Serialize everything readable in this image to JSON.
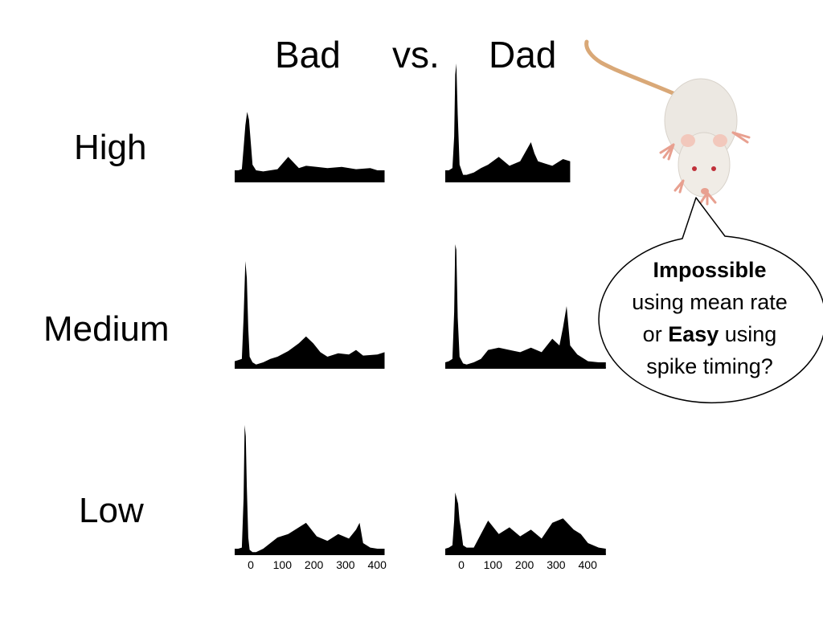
{
  "title": {
    "left_word": "Bad",
    "middle_word": "vs.",
    "right_word": "Dad"
  },
  "row_labels": [
    "High",
    "Medium",
    "Low"
  ],
  "callout": {
    "bold_1": "Impossible",
    "line_2": "using mean rate",
    "line_3_prefix": "or",
    "bold_2": "Easy",
    "line_3_suffix": "using",
    "line_4": "spike timing?"
  },
  "colors": {
    "hist_fill": "#000000",
    "callout_stroke": "#000000",
    "rat_body": "#ece8e2",
    "rat_tail": "#d9a877",
    "rat_pink": "#e8a090"
  },
  "picture": {
    "rat_icon": "white-lab-rat-icon"
  },
  "chart_data": [
    {
      "type": "area",
      "stimulus": "Bad",
      "level": "High",
      "x": [
        0,
        10,
        20,
        25,
        30,
        35,
        40,
        45,
        50,
        60,
        80,
        100,
        120,
        150,
        180,
        200,
        230,
        260,
        300,
        340,
        380,
        400,
        420
      ],
      "y": [
        0.1,
        0.1,
        0.11,
        0.3,
        0.5,
        0.62,
        0.55,
        0.35,
        0.15,
        0.1,
        0.09,
        0.1,
        0.11,
        0.22,
        0.12,
        0.14,
        0.13,
        0.12,
        0.13,
        0.11,
        0.12,
        0.1,
        0.1
      ],
      "xlim": [
        0,
        450
      ],
      "ylim": [
        0,
        1
      ]
    },
    {
      "type": "area",
      "stimulus": "Dad",
      "level": "High",
      "x": [
        0,
        10,
        20,
        25,
        28,
        31,
        35,
        40,
        50,
        60,
        80,
        100,
        120,
        150,
        180,
        210,
        240,
        250,
        260,
        280,
        300,
        330,
        350
      ],
      "y": [
        0.1,
        0.1,
        0.12,
        0.4,
        0.95,
        1.05,
        0.6,
        0.15,
        0.06,
        0.06,
        0.08,
        0.12,
        0.15,
        0.22,
        0.14,
        0.18,
        0.35,
        0.25,
        0.18,
        0.16,
        0.14,
        0.2,
        0.18
      ],
      "xlim": [
        0,
        450
      ],
      "ylim": [
        0,
        1
      ]
    },
    {
      "type": "area",
      "stimulus": "Bad",
      "level": "Medium",
      "x": [
        0,
        10,
        20,
        25,
        30,
        34,
        38,
        42,
        50,
        60,
        80,
        100,
        120,
        150,
        180,
        200,
        220,
        240,
        260,
        290,
        320,
        340,
        360,
        400,
        420
      ],
      "y": [
        0.06,
        0.07,
        0.08,
        0.45,
        0.95,
        0.8,
        0.35,
        0.1,
        0.05,
        0.03,
        0.05,
        0.08,
        0.1,
        0.15,
        0.22,
        0.28,
        0.22,
        0.14,
        0.1,
        0.13,
        0.12,
        0.16,
        0.11,
        0.12,
        0.14
      ],
      "xlim": [
        0,
        450
      ],
      "ylim": [
        0,
        1
      ]
    },
    {
      "type": "area",
      "stimulus": "Dad",
      "level": "Medium",
      "x": [
        0,
        10,
        20,
        25,
        28,
        31,
        35,
        40,
        50,
        60,
        80,
        100,
        120,
        150,
        180,
        210,
        240,
        270,
        300,
        320,
        330,
        340,
        350,
        370,
        400,
        430,
        450
      ],
      "y": [
        0.05,
        0.06,
        0.08,
        0.5,
        1.1,
        1.05,
        0.45,
        0.1,
        0.04,
        0.03,
        0.05,
        0.08,
        0.16,
        0.18,
        0.16,
        0.14,
        0.18,
        0.14,
        0.26,
        0.2,
        0.36,
        0.55,
        0.2,
        0.12,
        0.06,
        0.05,
        0.05
      ],
      "xlim": [
        0,
        450
      ],
      "ylim": [
        0,
        1
      ]
    },
    {
      "type": "area",
      "stimulus": "Bad",
      "level": "Low",
      "x": [
        0,
        10,
        20,
        25,
        28,
        31,
        34,
        38,
        42,
        50,
        60,
        80,
        100,
        120,
        150,
        180,
        200,
        230,
        260,
        290,
        320,
        340,
        350,
        360,
        380,
        400,
        420
      ],
      "y": [
        0.05,
        0.05,
        0.06,
        0.5,
        1.15,
        1.05,
        0.6,
        0.15,
        0.04,
        0.02,
        0.02,
        0.05,
        0.1,
        0.15,
        0.18,
        0.24,
        0.28,
        0.16,
        0.12,
        0.18,
        0.14,
        0.22,
        0.28,
        0.1,
        0.06,
        0.05,
        0.05
      ],
      "xlim": [
        0,
        450
      ],
      "ylim": [
        0,
        1
      ]
    },
    {
      "type": "area",
      "stimulus": "Dad",
      "level": "Low",
      "x": [
        0,
        10,
        20,
        25,
        28,
        32,
        36,
        40,
        45,
        50,
        60,
        80,
        100,
        120,
        150,
        180,
        210,
        240,
        270,
        300,
        330,
        360,
        380,
        400,
        430,
        450
      ],
      "y": [
        0.05,
        0.06,
        0.08,
        0.3,
        0.55,
        0.5,
        0.45,
        0.3,
        0.2,
        0.08,
        0.06,
        0.06,
        0.18,
        0.3,
        0.18,
        0.24,
        0.16,
        0.22,
        0.14,
        0.28,
        0.32,
        0.22,
        0.18,
        0.1,
        0.06,
        0.05
      ],
      "xlim": [
        0,
        450
      ],
      "ylim": [
        0,
        1
      ]
    },
    {
      "type": "axis",
      "stimulus": "Bad",
      "tick_values": [
        0,
        100,
        200,
        300,
        400
      ],
      "tick_labels": [
        "0",
        "100",
        "200",
        "300",
        "400"
      ]
    },
    {
      "type": "axis",
      "stimulus": "Dad",
      "tick_values": [
        0,
        100,
        200,
        300,
        400
      ],
      "tick_labels": [
        "0",
        "100",
        "200",
        "300",
        "400"
      ]
    }
  ]
}
